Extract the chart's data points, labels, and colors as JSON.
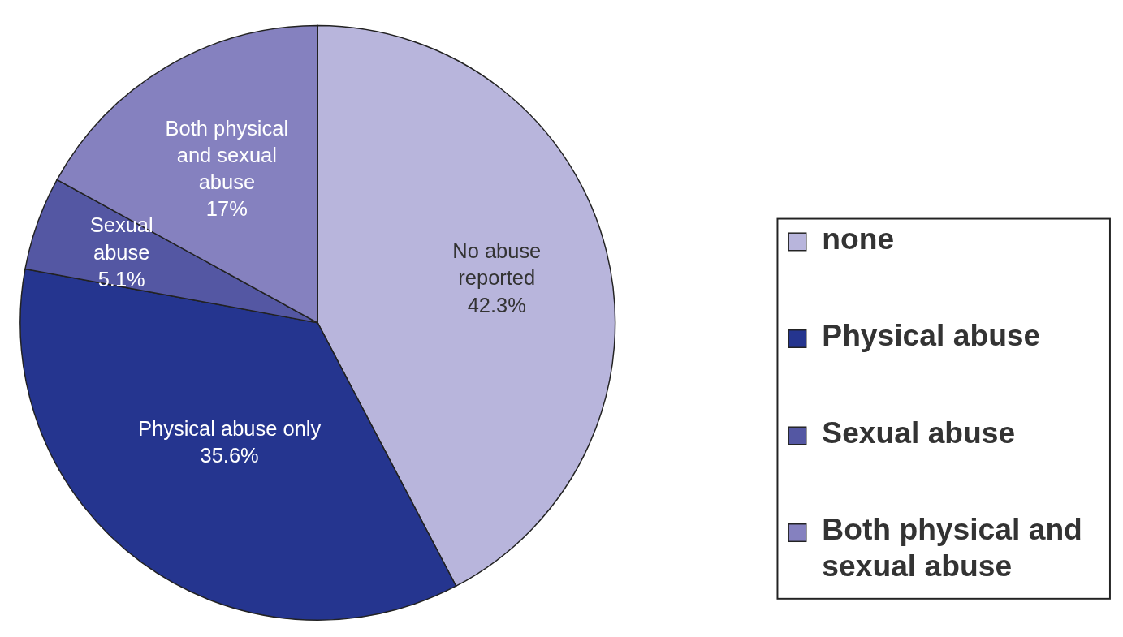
{
  "chart_data": {
    "type": "pie",
    "categories": [
      "none",
      "Physical abuse",
      "Sexual abuse",
      "Both physical and sexual abuse"
    ],
    "values": [
      42.3,
      35.6,
      5.1,
      17
    ],
    "colors": [
      "#b8b5dc",
      "#25358f",
      "#5457a3",
      "#8581bf"
    ],
    "value_labels": [
      "42.3%",
      "35.6%",
      "5.1%",
      "17%"
    ],
    "annotations": [
      "No abuse\nreported",
      "Physical abuse only",
      "Sexual\nabuse",
      "Both physical\nand sexual\nabuse"
    ],
    "legend": "right"
  }
}
